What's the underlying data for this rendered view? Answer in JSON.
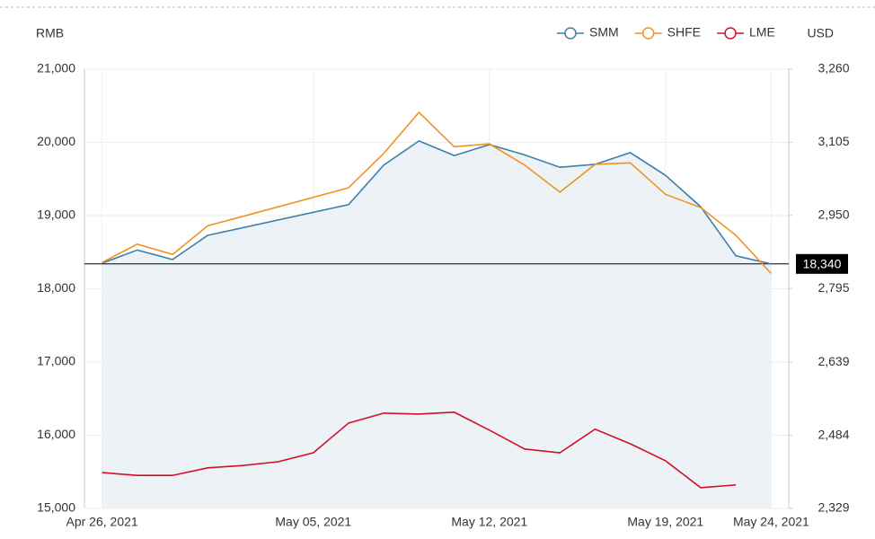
{
  "chart_data": {
    "type": "line",
    "y_label": "RMB",
    "y2_label": "USD",
    "legend": "top-right",
    "grid": true,
    "area_under": "SMM",
    "xlim": [
      -0.5,
      19.5
    ],
    "xticks": [
      {
        "value": 0,
        "label": "Apr 26, 2021"
      },
      {
        "value": 6,
        "label": "May 05, 2021"
      },
      {
        "value": 11,
        "label": "May 12, 2021"
      },
      {
        "value": 16,
        "label": "May 19, 2021"
      },
      {
        "value": 19,
        "label": "May 24, 2021"
      }
    ],
    "ylim": [
      15000,
      21000
    ],
    "yticks": [
      {
        "value": 15000,
        "label": "15,000"
      },
      {
        "value": 16000,
        "label": "16,000"
      },
      {
        "value": 17000,
        "label": "17,000"
      },
      {
        "value": 18000,
        "label": "18,000"
      },
      {
        "value": 19000,
        "label": "19,000"
      },
      {
        "value": 20000,
        "label": "20,000"
      },
      {
        "value": 21000,
        "label": "21,000"
      }
    ],
    "y2lim": [
      2329,
      3260
    ],
    "y2ticks": [
      {
        "value": 2329,
        "label": "2,329"
      },
      {
        "value": 2484,
        "label": "2,484"
      },
      {
        "value": 2639,
        "label": "2,639"
      },
      {
        "value": 2795,
        "label": "2,795"
      },
      {
        "value": 2950,
        "label": "2,950"
      },
      {
        "value": 3105,
        "label": "3,105"
      },
      {
        "value": 3260,
        "label": "3,260"
      }
    ],
    "current_value": {
      "value": 18340,
      "label": "18,340"
    },
    "series": [
      {
        "name": "SMM",
        "color": "#3d7fa8",
        "x": [
          0,
          1,
          2,
          3,
          7,
          8,
          9,
          10,
          11,
          12,
          13,
          14,
          15,
          16,
          17,
          18,
          19
        ],
        "values": [
          18350,
          18530,
          18400,
          18730,
          19150,
          19690,
          20020,
          19820,
          19970,
          19830,
          19660,
          19700,
          19860,
          19550,
          19120,
          18450,
          18340
        ]
      },
      {
        "name": "SHFE",
        "color": "#f0931f",
        "x": [
          0,
          1,
          2,
          3,
          7,
          8,
          9,
          10,
          11,
          12,
          13,
          14,
          15,
          16,
          17,
          18,
          19
        ],
        "values": [
          18360,
          18610,
          18470,
          18860,
          19380,
          19850,
          20410,
          19940,
          19980,
          19690,
          19320,
          19700,
          19720,
          19290,
          19110,
          18730,
          18210
        ]
      },
      {
        "name": "LME",
        "color": "#d0102a",
        "axis": "y2",
        "x": [
          0,
          1,
          2,
          3,
          4,
          5,
          6,
          7,
          8,
          9,
          10,
          11,
          12,
          13,
          14,
          15,
          16,
          17,
          18
        ],
        "values": [
          2405,
          2399,
          2399,
          2415,
          2420,
          2428,
          2447,
          2510,
          2531,
          2529,
          2533,
          2495,
          2455,
          2447,
          2497,
          2466,
          2430,
          2373,
          2379
        ]
      }
    ]
  }
}
